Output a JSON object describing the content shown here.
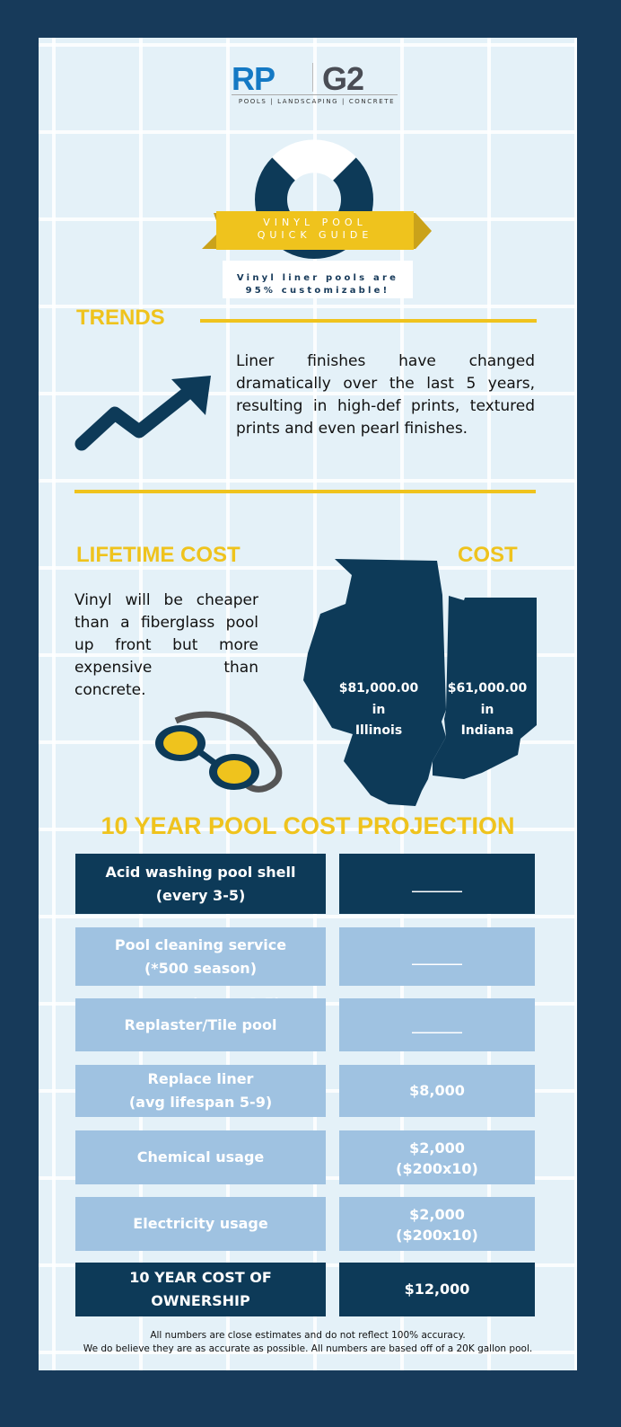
{
  "logo": {
    "rp": "RP",
    "g2": "G2",
    "tagline": "POOLS | LANDSCAPING | CONCRETE"
  },
  "banner": {
    "line1": "VINYL POOL",
    "line2": "QUICK GUIDE"
  },
  "tagline": {
    "line1": "Vinyl liner pools are",
    "line2": "95% customizable!"
  },
  "trends": {
    "title": "TRENDS",
    "text": "Liner finishes have changed dramatically over the last 5 years, resulting in high-def prints, textured prints and even pearl finishes."
  },
  "lifetime": {
    "title": "LIFETIME COST",
    "text": "Vinyl will be cheaper than a fiberglass pool up front but more expensive than concrete."
  },
  "cost": {
    "title": "COST",
    "illinois": {
      "amount": "$81,000.00",
      "in": "in",
      "state": "Illinois"
    },
    "indiana": {
      "amount": "$61,000.00",
      "in": "in",
      "state": "Indiana"
    }
  },
  "projection": {
    "title": "10 YEAR POOL COST PROJECTION",
    "overflow_text": "(every 3-5)",
    "rows": [
      {
        "label1": "Acid washing pool shell",
        "label2": "(every 3-5)",
        "value1": "_______",
        "value2": "",
        "style": "dark"
      },
      {
        "label1": "Pool cleaning service",
        "label2": "(*500 season)",
        "value1": "_______",
        "value2": "",
        "style": "light"
      },
      {
        "label1": "Replaster/Tile pool",
        "label2": "",
        "value1": "_______",
        "value2": "",
        "style": "light"
      },
      {
        "label1": "Replace liner",
        "label2": "(avg lifespan  5-9)",
        "value1": "$8,000",
        "value2": "",
        "style": "light"
      },
      {
        "label1": "Chemical usage",
        "label2": "",
        "value1": "$2,000",
        "value2": "($200x10)",
        "style": "light"
      },
      {
        "label1": "Electricity usage",
        "label2": "",
        "value1": "$2,000",
        "value2": "($200x10)",
        "style": "light"
      },
      {
        "label1": "10 YEAR COST OF",
        "label2": "OWNERSHIP",
        "value1": "$12,000",
        "value2": "",
        "style": "dark"
      }
    ]
  },
  "footer": {
    "line1": "All numbers are close estimates and do not reflect 100% accuracy.",
    "line2": "We do believe they are as accurate as possible. All numbers are based off of a 20K gallon pool."
  },
  "colors": {
    "frame": "#173a5a",
    "accent": "#efc31d",
    "dark": "#0d3a58",
    "light": "#9fc2e1"
  }
}
